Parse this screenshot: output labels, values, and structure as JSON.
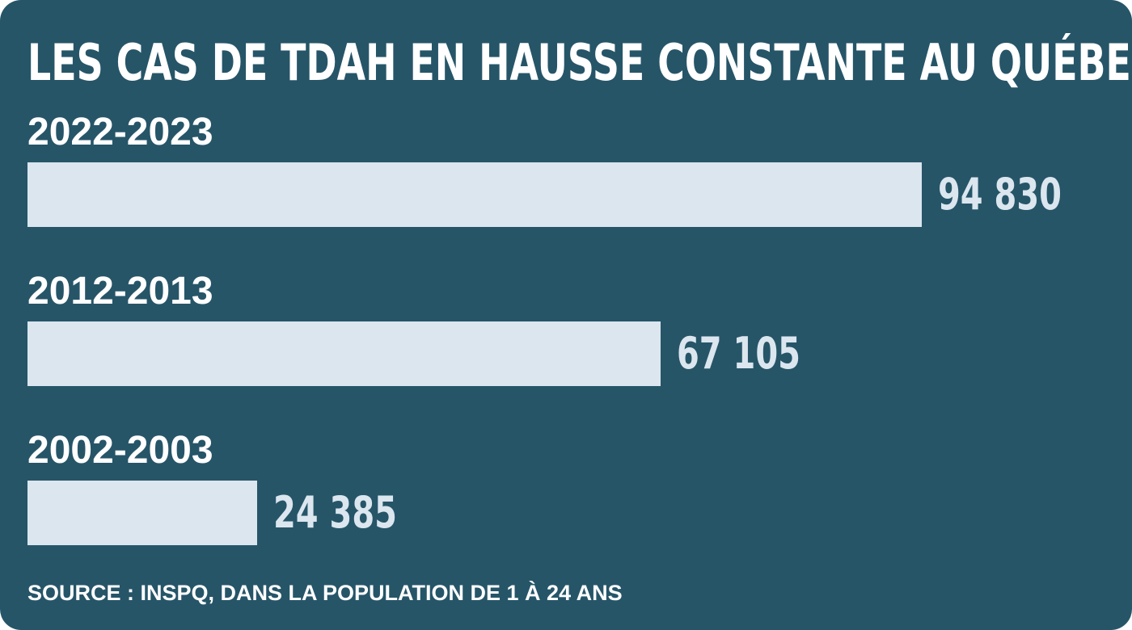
{
  "colors": {
    "background": "#265568",
    "bar": "#dbe6ef",
    "text": "#ffffff",
    "value_text": "#dbe6ef"
  },
  "chart_data": {
    "type": "bar",
    "orientation": "horizontal",
    "title": "LES CAS DE TDAH EN HAUSSE CONSTANTE AU QUÉBEC",
    "categories": [
      "2022-2023",
      "2012-2013",
      "2002-2003"
    ],
    "values": [
      94830,
      67105,
      24385
    ],
    "value_labels": [
      "94 830",
      "67 105",
      "24 385"
    ],
    "xlim": [
      0,
      94830
    ],
    "grid": false,
    "legend": "none",
    "source": "SOURCE : INSPQ, DANS LA POPULATION DE 1 À 24 ANS"
  }
}
